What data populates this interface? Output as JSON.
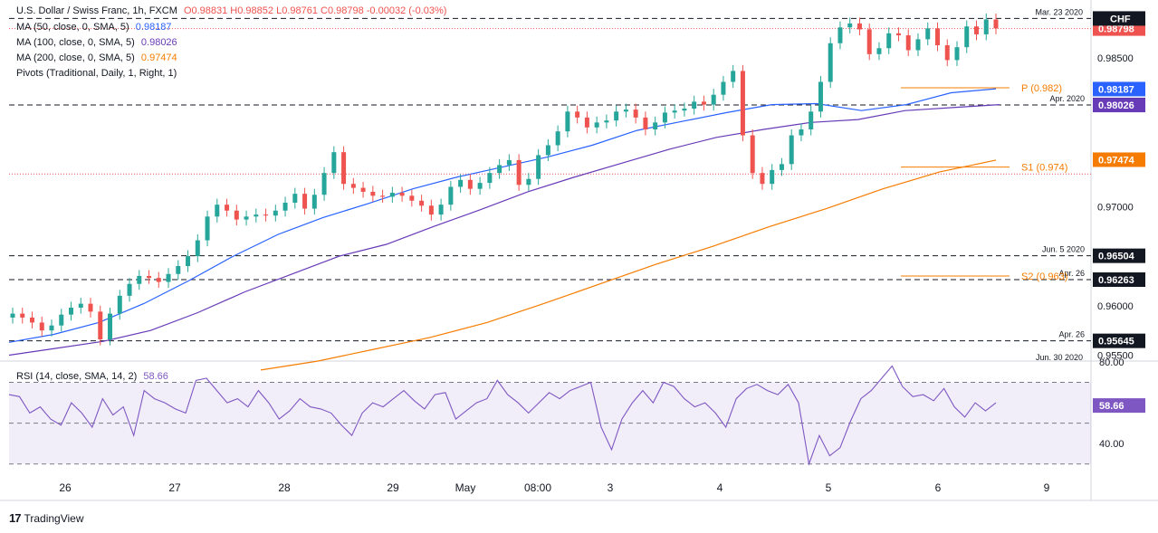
{
  "header": {
    "symbol_line": "U.S. Dollar / Swiss Franc, 1h, FXCM",
    "ohlc": "O0.98831 H0.98852 L0.98761 C0.98798 -0.00032 (-0.03%)",
    "currency": "CHF"
  },
  "legend": [
    {
      "label": "MA (50, close, 0, SMA, 5)",
      "value": "0.98187",
      "color": "#2962ff"
    },
    {
      "label": "MA (100, close, 0, SMA, 5)",
      "value": "0.98026",
      "color": "#673ab7"
    },
    {
      "label": "MA (200, close, 0, SMA, 5)",
      "value": "0.97474",
      "color": "#f57c00"
    },
    {
      "label": "Pivots (Traditional, Daily, 1, Right, 1)",
      "value": "",
      "color": "#131722"
    }
  ],
  "rsi_legend": {
    "label": "RSI (14, close, SMA, 14, 2)",
    "value": "58.66"
  },
  "brand": "TradingView",
  "chart_data": {
    "type": "candlestick",
    "symbol": "USD/CHF",
    "timeframe": "1h",
    "x_tick_labels": [
      "26",
      "27",
      "28",
      "29",
      "May",
      "08:00",
      "3",
      "4",
      "5",
      "6",
      "9"
    ],
    "y_tick_labels": [
      "0.98500",
      "0.98000",
      "0.97000",
      "0.96000",
      "0.95500"
    ],
    "ylim": [
      0.9545,
      0.9905
    ],
    "price_badges": [
      {
        "value": "0.98798",
        "color": "#ef5350",
        "style": "dotted"
      },
      {
        "value": "0.98187",
        "color": "#2962ff",
        "style": "none"
      },
      {
        "value": "0.98027",
        "color": "#131722",
        "style": "dashed",
        "note": "Apr. 2020"
      },
      {
        "value": "0.98026",
        "color": "#673ab7",
        "style": "none"
      },
      {
        "value": "0.97474",
        "color": "#f57c00",
        "style": "none"
      },
      {
        "value": "0.96504",
        "color": "#131722",
        "style": "dashed",
        "note": "Jun. 5 2020"
      },
      {
        "value": "0.96263",
        "color": "#131722",
        "style": "dashed",
        "note": "Apr. 26"
      },
      {
        "value": "0.95645",
        "color": "#131722",
        "style": "dashed",
        "note": "Apr. 26"
      }
    ],
    "top_line": {
      "value": "0.98900",
      "note": "Mar. 23 2020"
    },
    "bottom_note": "Jun. 30 2020",
    "pivots": [
      {
        "label": "P (0.982)",
        "value": 0.982
      },
      {
        "label": "S1 (0.974)",
        "value": 0.974
      },
      {
        "label": "S2 (0.963)",
        "value": 0.963
      }
    ],
    "extra_dotted_level": 0.9733,
    "close_series": [
      0.9592,
      0.9588,
      0.9583,
      0.9575,
      0.958,
      0.9591,
      0.9598,
      0.9602,
      0.9594,
      0.9566,
      0.9592,
      0.961,
      0.9622,
      0.963,
      0.9628,
      0.9624,
      0.9632,
      0.964,
      0.965,
      0.9666,
      0.969,
      0.9702,
      0.9696,
      0.9687,
      0.969,
      0.9692,
      0.9691,
      0.9696,
      0.9704,
      0.9713,
      0.9698,
      0.9712,
      0.9734,
      0.9755,
      0.9723,
      0.9719,
      0.9715,
      0.9711,
      0.971,
      0.9714,
      0.9711,
      0.9706,
      0.9701,
      0.9692,
      0.9702,
      0.972,
      0.9727,
      0.9718,
      0.9724,
      0.9734,
      0.9742,
      0.9747,
      0.9722,
      0.9728,
      0.9752,
      0.9762,
      0.9776,
      0.9796,
      0.979,
      0.978,
      0.9785,
      0.9787,
      0.9796,
      0.9798,
      0.979,
      0.9778,
      0.9785,
      0.9795,
      0.9797,
      0.9799,
      0.9806,
      0.9803,
      0.9813,
      0.9826,
      0.9837,
      0.9772,
      0.9734,
      0.9723,
      0.9737,
      0.9743,
      0.9772,
      0.9778,
      0.9796,
      0.9826,
      0.9865,
      0.9881,
      0.9885,
      0.9879,
      0.9854,
      0.986,
      0.9875,
      0.9873,
      0.9858,
      0.9869,
      0.988,
      0.9863,
      0.9848,
      0.9861,
      0.9882,
      0.9874,
      0.9889,
      0.988
    ],
    "ma50_series": [
      0.9563,
      0.9571,
      0.9583,
      0.9602,
      0.9625,
      0.965,
      0.9672,
      0.9689,
      0.9703,
      0.9718,
      0.973,
      0.974,
      0.975,
      0.9762,
      0.9777,
      0.9786,
      0.9795,
      0.9803,
      0.9804,
      0.9797,
      0.9803,
      0.9815,
      0.9819
    ],
    "ma100_series": [
      0.955,
      0.9557,
      0.9564,
      0.9575,
      0.9593,
      0.9614,
      0.9632,
      0.965,
      0.9662,
      0.968,
      0.9697,
      0.9715,
      0.973,
      0.9744,
      0.9758,
      0.977,
      0.9778,
      0.9785,
      0.9788,
      0.9797,
      0.98,
      0.9803
    ],
    "ma200_series": [
      0.9535,
      0.9544,
      0.9556,
      0.9568,
      0.9583,
      0.9602,
      0.9622,
      0.9642,
      0.966,
      0.968,
      0.9698,
      0.9718,
      0.9735,
      0.9747
    ],
    "rsi": {
      "ylim": [
        25,
        80
      ],
      "y_tick_labels": [
        "80.00",
        "40.00"
      ],
      "band": [
        30,
        70
      ],
      "mid": 50,
      "current": 58.66,
      "series": [
        64,
        63,
        55,
        58,
        52,
        49,
        60,
        55,
        48,
        62,
        54,
        58,
        44,
        66,
        62,
        60,
        57,
        55,
        71,
        72,
        66,
        60,
        62,
        58,
        66,
        60,
        52,
        56,
        62,
        58,
        57,
        55,
        49,
        44,
        55,
        60,
        58,
        62,
        66,
        61,
        57,
        64,
        65,
        52,
        56,
        60,
        62,
        71,
        64,
        60,
        55,
        60,
        65,
        62,
        66,
        68,
        70,
        48,
        37,
        52,
        60,
        66,
        60,
        70,
        68,
        62,
        58,
        60,
        55,
        48,
        62,
        67,
        69,
        66,
        64,
        69,
        60,
        30,
        44,
        34,
        38,
        51,
        62,
        66,
        72,
        78,
        68,
        63,
        64,
        61,
        67,
        58,
        53,
        60,
        56,
        60
      ]
    }
  }
}
